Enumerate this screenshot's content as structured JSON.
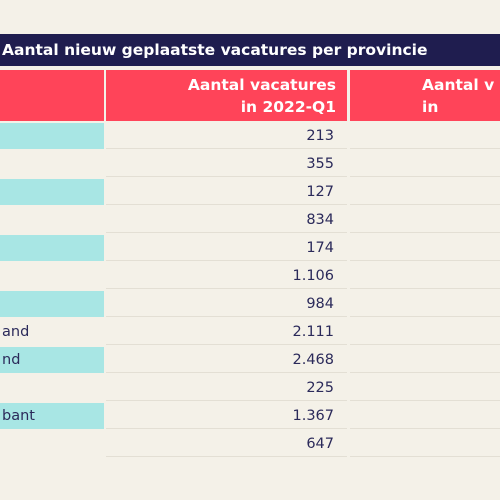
{
  "title": "Aantal nieuw geplaatste vacatures per provincie",
  "table": {
    "headers": [
      {
        "lines": [
          "",
          ""
        ]
      },
      {
        "lines": [
          "Aantal vacatures",
          "in 2022-Q1"
        ]
      },
      {
        "lines": [
          "Aantal v",
          "in"
        ]
      }
    ],
    "rows": [
      {
        "name": "",
        "value": "213",
        "highlighted": true
      },
      {
        "name": "",
        "value": "355",
        "highlighted": false
      },
      {
        "name": "",
        "value": "127",
        "highlighted": true
      },
      {
        "name": "",
        "value": "834",
        "highlighted": false
      },
      {
        "name": "",
        "value": "174",
        "highlighted": true
      },
      {
        "name": "",
        "value": "1.106",
        "highlighted": false
      },
      {
        "name": "",
        "value": "984",
        "highlighted": true
      },
      {
        "name": "and",
        "value": "2.111",
        "highlighted": false
      },
      {
        "name": "nd",
        "value": "2.468",
        "highlighted": true
      },
      {
        "name": "",
        "value": "225",
        "highlighted": false
      },
      {
        "name": "bant",
        "value": "1.367",
        "highlighted": true
      },
      {
        "name": "",
        "value": "647",
        "highlighted": false
      }
    ]
  },
  "colors": {
    "background": "#f4f1e8",
    "title_bar": "#1f1d4f",
    "header": "#ff4459",
    "highlight": "#a8e6e4",
    "text": "#2b2a5a"
  }
}
